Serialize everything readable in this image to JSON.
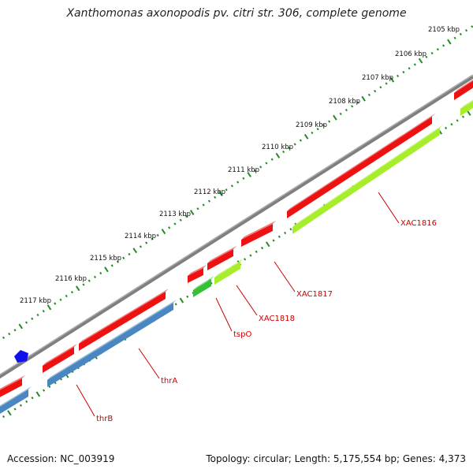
{
  "title": "Xanthomonas axonopodis pv. citri str. 306, complete genome",
  "footer": {
    "accession": "Accession: NC_003919",
    "topology": "Topology: circular; Length: 5,175,554 bp; Genes: 4,373"
  },
  "ticks": [
    "2105 kbp",
    "2106 kbp",
    "2107 kbp",
    "2108 kbp",
    "2109 kbp",
    "2110 kbp",
    "2111 kbp",
    "2112 kbp",
    "2113 kbp",
    "2114 kbp",
    "2115 kbp",
    "2116 kbp",
    "2117 kbp"
  ],
  "genes": [
    "XAC1816",
    "XAC1817",
    "XAC1818",
    "tspO",
    "thrA",
    "thrB"
  ],
  "colors": {
    "backbone": "#808080",
    "gene_forward": "#ee1111",
    "cds_reverse_green": "#a6ee2a",
    "cds_reverse_darkgreen": "#33c233",
    "cds_reverse_blue": "#4a86bf",
    "marker_blue": "#1010ee",
    "tick_green": "#228b22",
    "label_red": "#cc0000"
  }
}
